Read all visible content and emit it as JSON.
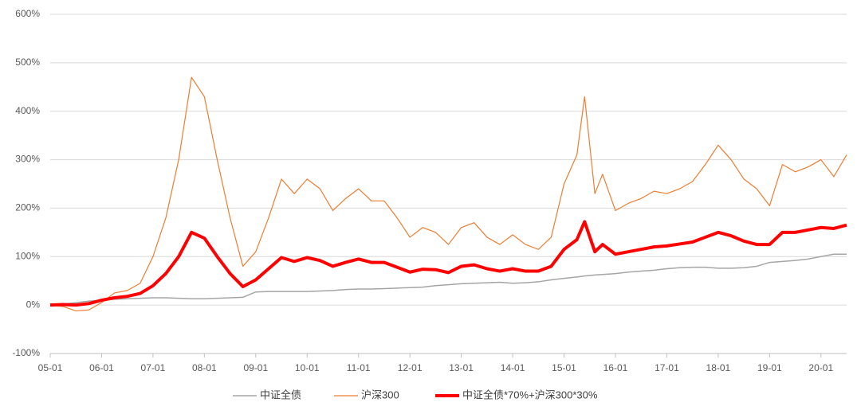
{
  "chart_data": {
    "type": "line",
    "x": [
      5,
      5.25,
      5.5,
      5.75,
      6,
      6.25,
      6.5,
      6.75,
      7,
      7.25,
      7.5,
      7.75,
      8,
      8.25,
      8.5,
      8.75,
      9,
      9.25,
      9.5,
      9.75,
      10,
      10.25,
      10.5,
      10.75,
      11,
      11.25,
      11.5,
      11.75,
      12,
      12.25,
      12.5,
      12.75,
      13,
      13.25,
      13.5,
      13.75,
      14,
      14.25,
      14.5,
      14.75,
      15,
      15.25,
      15.4,
      15.6,
      15.75,
      16,
      16.25,
      16.5,
      16.75,
      17,
      17.25,
      17.5,
      17.75,
      18,
      18.25,
      18.5,
      18.75,
      19,
      19.25,
      19.5,
      19.75,
      20,
      20.25,
      20.5
    ],
    "series": [
      {
        "name": "中证全债",
        "color": "#a5a5a5",
        "width": 1.5,
        "values": [
          0,
          2,
          5,
          8,
          10,
          12,
          13,
          14,
          15,
          15,
          14,
          13,
          13,
          14,
          15,
          16,
          27,
          28,
          28,
          28,
          28,
          29,
          30,
          32,
          33,
          33,
          34,
          35,
          36,
          37,
          40,
          42,
          44,
          45,
          46,
          47,
          45,
          46,
          48,
          52,
          55,
          58,
          60,
          62,
          63,
          65,
          68,
          70,
          72,
          75,
          77,
          78,
          78,
          76,
          76,
          77,
          80,
          88,
          90,
          92,
          95,
          100,
          105,
          105
        ]
      },
      {
        "name": "沪深300",
        "color": "#ed7d31",
        "width": 1.2,
        "values": [
          0,
          -3,
          -12,
          -10,
          5,
          25,
          30,
          45,
          100,
          180,
          300,
          470,
          430,
          300,
          180,
          80,
          110,
          180,
          260,
          230,
          260,
          240,
          195,
          220,
          240,
          215,
          215,
          180,
          140,
          160,
          150,
          125,
          160,
          170,
          140,
          125,
          145,
          125,
          115,
          140,
          250,
          310,
          430,
          230,
          270,
          195,
          210,
          220,
          235,
          230,
          240,
          255,
          290,
          330,
          300,
          260,
          240,
          205,
          290,
          275,
          285,
          300,
          265,
          310
        ]
      },
      {
        "name": "中证全债*70%+沪深300*30%",
        "color": "#ff0000",
        "width": 4,
        "values": [
          0,
          1,
          0,
          3,
          10,
          15,
          18,
          24,
          40,
          65,
          100,
          150,
          138,
          100,
          65,
          38,
          52,
          75,
          98,
          90,
          98,
          92,
          80,
          88,
          95,
          88,
          88,
          78,
          68,
          74,
          73,
          67,
          80,
          83,
          75,
          70,
          75,
          70,
          70,
          80,
          115,
          135,
          172,
          110,
          125,
          105,
          110,
          115,
          120,
          122,
          126,
          130,
          140,
          150,
          143,
          132,
          125,
          125,
          150,
          150,
          155,
          160,
          158,
          165
        ]
      }
    ],
    "xlim": [
      5,
      20.5
    ],
    "xticks": [
      {
        "value": 5,
        "label": "05-01"
      },
      {
        "value": 6,
        "label": "06-01"
      },
      {
        "value": 7,
        "label": "07-01"
      },
      {
        "value": 8,
        "label": "08-01"
      },
      {
        "value": 9,
        "label": "09-01"
      },
      {
        "value": 10,
        "label": "10-01"
      },
      {
        "value": 11,
        "label": "11-01"
      },
      {
        "value": 12,
        "label": "12-01"
      },
      {
        "value": 13,
        "label": "13-01"
      },
      {
        "value": 14,
        "label": "14-01"
      },
      {
        "value": 15,
        "label": "15-01"
      },
      {
        "value": 16,
        "label": "16-01"
      },
      {
        "value": 17,
        "label": "17-01"
      },
      {
        "value": 18,
        "label": "18-01"
      },
      {
        "value": 19,
        "label": "19-01"
      },
      {
        "value": 20,
        "label": "20-01"
      }
    ],
    "ylim": [
      -100,
      600
    ],
    "yticks": [
      {
        "value": -100,
        "label": "-100%"
      },
      {
        "value": 0,
        "label": "0%"
      },
      {
        "value": 100,
        "label": "100%"
      },
      {
        "value": 200,
        "label": "200%"
      },
      {
        "value": 300,
        "label": "300%"
      },
      {
        "value": 400,
        "label": "400%"
      },
      {
        "value": 500,
        "label": "500%"
      },
      {
        "value": 600,
        "label": "600%"
      }
    ],
    "grid": true,
    "legend": "bottom"
  }
}
